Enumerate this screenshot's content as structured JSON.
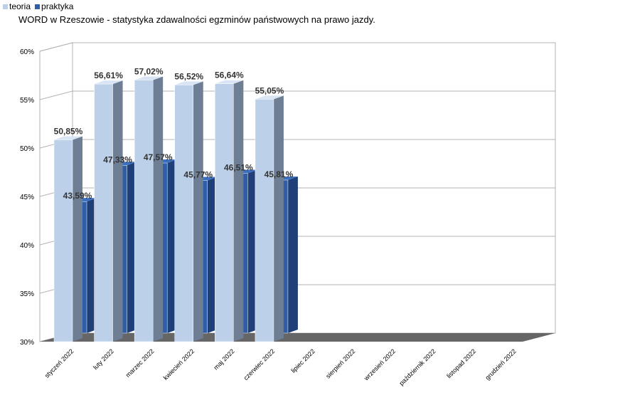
{
  "chart_data": {
    "type": "bar",
    "title": "WORD w Rzeszowie - statystyka zdawalności egzminów państwowych na prawo jazdy.",
    "categories": [
      "styczeń 2022",
      "luty 2022",
      "marzec 2022",
      "kwiecień 2022",
      "maj 2022",
      "czerwiec 2022",
      "lipiec 2022",
      "sierpień 2022",
      "wrzesień 2022",
      "październik 2022",
      "listopad 2022",
      "grudzień 2022"
    ],
    "series": [
      {
        "name": "teoria",
        "color": "#bdd0ea",
        "values": [
          50.85,
          56.61,
          57.02,
          56.52,
          56.64,
          55.05,
          null,
          null,
          null,
          null,
          null,
          null
        ],
        "labels": [
          "50,85%",
          "56,61%",
          "57,02%",
          "56,52%",
          "56,64%",
          "55,05%"
        ]
      },
      {
        "name": "praktyka",
        "color": "#2f5ea8",
        "values": [
          43.59,
          47.33,
          47.57,
          45.77,
          46.51,
          45.81,
          null,
          null,
          null,
          null,
          null,
          null
        ],
        "labels": [
          "43,59%",
          "47,33%",
          "47,57%",
          "45,77%",
          "46,51%",
          "45,81%"
        ]
      }
    ],
    "ylim": [
      30,
      60
    ],
    "yticks": [
      "30%",
      "35%",
      "40%",
      "45%",
      "50%",
      "55%",
      "60%"
    ],
    "grid": true,
    "legend": "top-left",
    "style": "3d-bar"
  }
}
